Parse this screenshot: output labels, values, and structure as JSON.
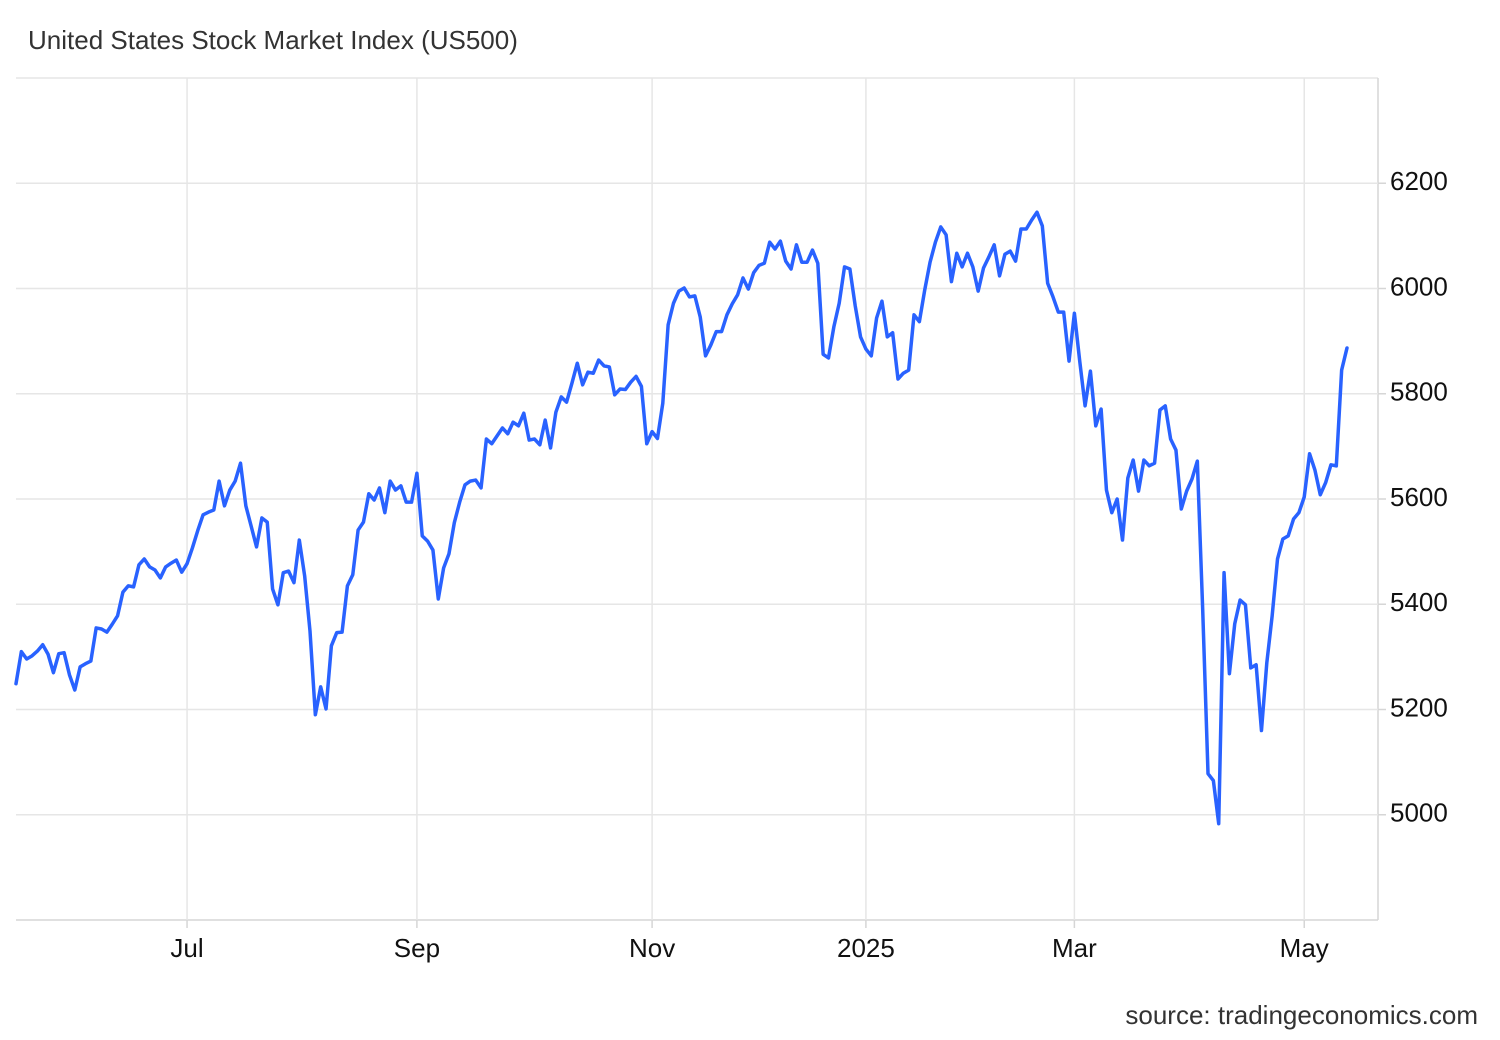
{
  "chart_data": {
    "type": "line",
    "title": "United States Stock Market Index (US500)",
    "source": "source: tradingeconomics.com",
    "categories": [
      null,
      null,
      null,
      null,
      null,
      null,
      null,
      null,
      null,
      null,
      null,
      null,
      null,
      null,
      null,
      null,
      null,
      null,
      null,
      null,
      null,
      null,
      null,
      null,
      null,
      null,
      null,
      null,
      null,
      null,
      null,
      null,
      "Jul",
      null,
      null,
      null,
      null,
      null,
      null,
      null,
      null,
      null,
      null,
      null,
      null,
      null,
      null,
      null,
      null,
      null,
      null,
      null,
      null,
      null,
      null,
      null,
      null,
      null,
      null,
      null,
      null,
      null,
      null,
      null,
      null,
      null,
      null,
      null,
      null,
      null,
      null,
      null,
      null,
      null,
      null,
      "Sep",
      null,
      null,
      null,
      null,
      null,
      null,
      null,
      null,
      null,
      null,
      null,
      null,
      null,
      null,
      null,
      null,
      null,
      null,
      null,
      null,
      null,
      null,
      null,
      null,
      null,
      null,
      null,
      null,
      null,
      null,
      null,
      null,
      null,
      null,
      null,
      null,
      null,
      null,
      null,
      null,
      null,
      null,
      null,
      "Nov",
      null,
      null,
      null,
      null,
      null,
      null,
      null,
      null,
      null,
      null,
      null,
      null,
      null,
      null,
      null,
      null,
      null,
      null,
      null,
      null,
      null,
      null,
      null,
      null,
      null,
      null,
      null,
      null,
      null,
      null,
      null,
      null,
      null,
      null,
      null,
      null,
      null,
      null,
      null,
      "2025",
      null,
      null,
      null,
      null,
      null,
      null,
      null,
      null,
      null,
      null,
      null,
      null,
      null,
      null,
      null,
      null,
      null,
      null,
      null,
      null,
      null,
      null,
      null,
      null,
      null,
      null,
      null,
      null,
      null,
      null,
      null,
      null,
      null,
      null,
      null,
      null,
      null,
      null,
      "Mar",
      null,
      null,
      null,
      null,
      null,
      null,
      null,
      null,
      null,
      null,
      null,
      null,
      null,
      null,
      null,
      null,
      null,
      null,
      null,
      null,
      null,
      null,
      null,
      null,
      null,
      null,
      null,
      null,
      null,
      null,
      null,
      null,
      null,
      null,
      null,
      null,
      null,
      null,
      null,
      null,
      null,
      null,
      "May",
      null,
      null,
      null,
      null,
      null,
      null,
      null,
      null
    ],
    "series": [
      {
        "name": "US500",
        "color": "#2962ff",
        "values": [
          5249,
          5310,
          5296,
          5302,
          5311,
          5323,
          5305,
          5270,
          5306,
          5308,
          5266,
          5237,
          5281,
          5287,
          5292,
          5355,
          5353,
          5347,
          5362,
          5378,
          5423,
          5435,
          5433,
          5475,
          5486,
          5471,
          5465,
          5450,
          5471,
          5478,
          5484,
          5461,
          5477,
          5507,
          5540,
          5570,
          5575,
          5579,
          5634,
          5587,
          5617,
          5634,
          5668,
          5587,
          5548,
          5509,
          5564,
          5556,
          5429,
          5399,
          5460,
          5463,
          5441,
          5522,
          5454,
          5349,
          5190,
          5243,
          5201,
          5321,
          5346,
          5347,
          5435,
          5456,
          5541,
          5556,
          5610,
          5598,
          5621,
          5574,
          5634,
          5617,
          5625,
          5594,
          5594,
          5649,
          5530,
          5520,
          5503,
          5410,
          5469,
          5496,
          5555,
          5594,
          5627,
          5634,
          5636,
          5621,
          5714,
          5705,
          5720,
          5735,
          5724,
          5746,
          5739,
          5763,
          5712,
          5714,
          5703,
          5750,
          5697,
          5765,
          5794,
          5784,
          5820,
          5858,
          5817,
          5841,
          5839,
          5864,
          5853,
          5851,
          5798,
          5809,
          5808,
          5822,
          5833,
          5814,
          5705,
          5728,
          5715,
          5782,
          5931,
          5972,
          5995,
          6001,
          5984,
          5986,
          5946,
          5872,
          5893,
          5918,
          5918,
          5950,
          5971,
          5988,
          6020,
          5999,
          6030,
          6044,
          6048,
          6088,
          6075,
          6090,
          6052,
          6037,
          6083,
          6050,
          6050,
          6073,
          6048,
          5875,
          5868,
          5927,
          5972,
          6041,
          6037,
          5967,
          5908,
          5885,
          5872,
          5944,
          5976,
          5908,
          5916,
          5828,
          5839,
          5845,
          5950,
          5937,
          5997,
          6050,
          6088,
          6117,
          6102,
          6013,
          6067,
          6041,
          6067,
          6041,
          5995,
          6039,
          6060,
          6083,
          6024,
          6065,
          6071,
          6052,
          6113,
          6113,
          6130,
          6145,
          6119,
          6010,
          5984,
          5955,
          5955,
          5862,
          5953,
          5862,
          5777,
          5843,
          5739,
          5771,
          5617,
          5574,
          5600,
          5522,
          5640,
          5674,
          5615,
          5674,
          5663,
          5668,
          5769,
          5777,
          5714,
          5693,
          5581,
          5615,
          5638,
          5672,
          5391,
          5078,
          5065,
          4983,
          5460,
          5268,
          5363,
          5408,
          5399,
          5279,
          5285,
          5160,
          5289,
          5378,
          5486,
          5524,
          5530,
          5562,
          5574,
          5604,
          5686,
          5655,
          5608,
          5631,
          5665,
          5663,
          5845,
          5887
        ]
      }
    ],
    "ylim": [
      4800,
      6400
    ],
    "yticks": [
      5000,
      5200,
      5400,
      5600,
      5800,
      6000,
      6200
    ],
    "grid": true
  }
}
